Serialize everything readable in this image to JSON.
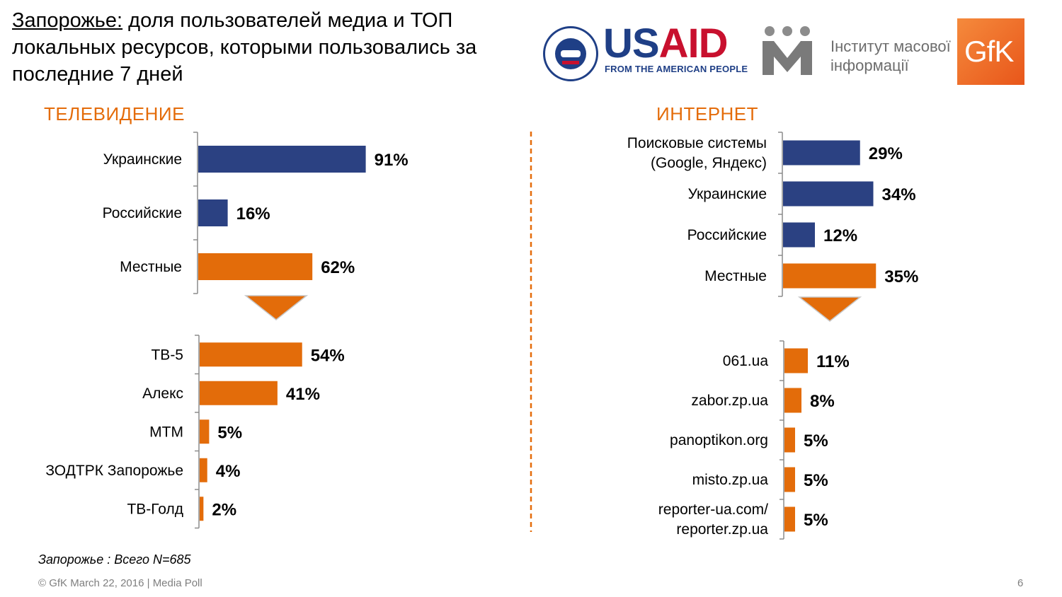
{
  "title": {
    "city": "Запорожье:",
    "rest": " доля пользователей медиа и ТОП локальных ресурсов, которыми пользовались за последние 7 дней"
  },
  "logos": {
    "usaid_word_a": "US",
    "usaid_word_b": "AID",
    "usaid_tagline": "FROM THE AMERICAN PEOPLE",
    "imi_name_line1": "Інститут масової",
    "imi_name_line2": "інформації",
    "gfk": "GfK"
  },
  "colors": {
    "blue": "#2b4182",
    "orange": "#e36c0a",
    "divider": "#e46c0a",
    "axis": "#8c8c8c"
  },
  "sections": {
    "tv": "ТЕЛЕВИДЕНИЕ",
    "internet": "ИНТЕРНЕТ"
  },
  "chart_data": [
    {
      "type": "bar",
      "orientation": "horizontal",
      "id": "tv-main",
      "categories": [
        "Украинские",
        "Российские",
        "Местные"
      ],
      "values": [
        91,
        16,
        62
      ],
      "value_labels": [
        "91%",
        "16%",
        "62%"
      ],
      "bar_colors": [
        "blue",
        "blue",
        "orange"
      ],
      "unit": "%",
      "xlim": [
        0,
        100
      ]
    },
    {
      "type": "bar",
      "orientation": "horizontal",
      "id": "tv-local",
      "categories": [
        "ТВ-5",
        "Алекс",
        "МТМ",
        "ЗОДТРК Запорожье",
        "ТВ-Голд"
      ],
      "values": [
        54,
        41,
        5,
        4,
        2
      ],
      "value_labels": [
        "54%",
        "41%",
        "5%",
        "4%",
        "2%"
      ],
      "bar_colors": [
        "orange",
        "orange",
        "orange",
        "orange",
        "orange"
      ],
      "unit": "%",
      "xlim": [
        0,
        100
      ]
    },
    {
      "type": "bar",
      "orientation": "horizontal",
      "id": "internet-main",
      "categories": [
        "Поисковые системы (Google, Яндекс)",
        "Украинские",
        "Российские",
        "Местные"
      ],
      "category_lines": [
        [
          "Поисковые системы",
          "(Google, Яндекс)"
        ],
        [
          "Украинские"
        ],
        [
          "Российские"
        ],
        [
          "Местные"
        ]
      ],
      "values": [
        29,
        34,
        12,
        35
      ],
      "value_labels": [
        "29%",
        "34%",
        "12%",
        "35%"
      ],
      "bar_colors": [
        "blue",
        "blue",
        "blue",
        "orange"
      ],
      "unit": "%",
      "xlim": [
        0,
        100
      ]
    },
    {
      "type": "bar",
      "orientation": "horizontal",
      "id": "internet-local",
      "categories": [
        "061.ua",
        "zabor.zp.ua",
        "panoptikon.org",
        "misto.zp.ua",
        "reporter-ua.com/ reporter.zp.ua"
      ],
      "category_lines": [
        [
          "061.ua"
        ],
        [
          "zabor.zp.ua"
        ],
        [
          "panoptikon.org"
        ],
        [
          "misto.zp.ua"
        ],
        [
          "reporter-ua.com/",
          "reporter.zp.ua"
        ]
      ],
      "values": [
        11,
        8,
        5,
        5,
        5
      ],
      "value_labels": [
        "11%",
        "8%",
        "5%",
        "5%",
        "5%"
      ],
      "bar_colors": [
        "orange",
        "orange",
        "orange",
        "orange",
        "orange"
      ],
      "unit": "%",
      "xlim": [
        0,
        100
      ]
    }
  ],
  "note": "Запорожье : Всего N=685",
  "footer": "© GfK March 22, 2016 | Media Poll",
  "page_number": "6"
}
